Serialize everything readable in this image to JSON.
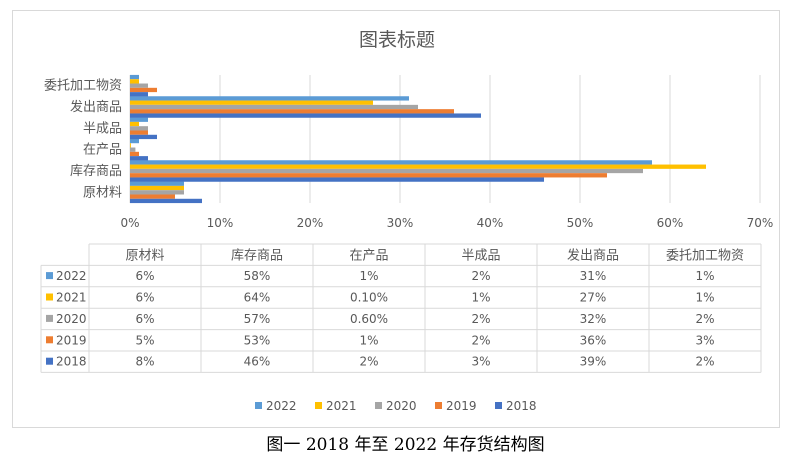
{
  "caption": "图一 2018 年至 2022 年存货结构图",
  "colors": {
    "2022": "#5B9BD5",
    "2021": "#FFC000",
    "2020": "#A5A5A5",
    "2019": "#ED7D31",
    "2018": "#4472C4"
  },
  "chart_data": {
    "type": "bar",
    "orientation": "horizontal",
    "title": "图表标题",
    "categories": [
      "原材料",
      "库存商品",
      "在产品",
      "半成品",
      "发出商品",
      "委托加工物资"
    ],
    "xlim": [
      0,
      0.7
    ],
    "x_ticks": [
      "0%",
      "10%",
      "20%",
      "30%",
      "40%",
      "50%",
      "60%",
      "70%"
    ],
    "grid": true,
    "legend_position": "bottom",
    "legend": [
      "2022",
      "2021",
      "2020",
      "2019",
      "2018"
    ],
    "series": [
      {
        "name": "2022",
        "values": [
          0.06,
          0.58,
          0.01,
          0.02,
          0.31,
          0.01
        ]
      },
      {
        "name": "2021",
        "values": [
          0.06,
          0.64,
          0.001,
          0.01,
          0.27,
          0.01
        ]
      },
      {
        "name": "2020",
        "values": [
          0.06,
          0.57,
          0.006,
          0.02,
          0.32,
          0.02
        ]
      },
      {
        "name": "2019",
        "values": [
          0.05,
          0.53,
          0.01,
          0.02,
          0.36,
          0.03
        ]
      },
      {
        "name": "2018",
        "values": [
          0.08,
          0.46,
          0.02,
          0.03,
          0.39,
          0.02
        ]
      }
    ],
    "data_table": {
      "headers": [
        "原材料",
        "库存商品",
        "在产品",
        "半成品",
        "发出商品",
        "委托加工物资"
      ],
      "rows": [
        {
          "name": "2022",
          "cells": [
            "6%",
            "58%",
            "1%",
            "2%",
            "31%",
            "1%"
          ]
        },
        {
          "name": "2021",
          "cells": [
            "6%",
            "64%",
            "0.10%",
            "1%",
            "27%",
            "1%"
          ]
        },
        {
          "name": "2020",
          "cells": [
            "6%",
            "57%",
            "0.60%",
            "2%",
            "32%",
            "2%"
          ]
        },
        {
          "name": "2019",
          "cells": [
            "5%",
            "53%",
            "1%",
            "2%",
            "36%",
            "3%"
          ]
        },
        {
          "name": "2018",
          "cells": [
            "8%",
            "46%",
            "2%",
            "3%",
            "39%",
            "2%"
          ]
        }
      ]
    }
  }
}
